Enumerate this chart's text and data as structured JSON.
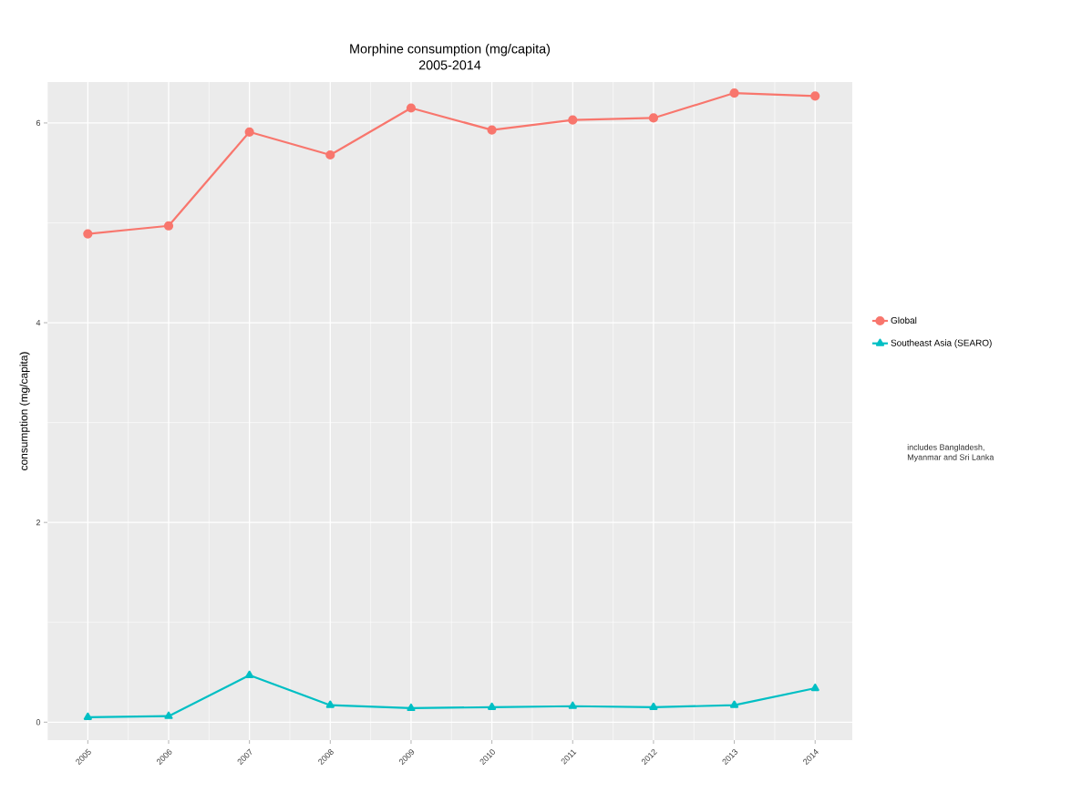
{
  "chart_data": {
    "type": "line",
    "title": "Morphine consumption (mg/capita)\n2005-2014",
    "ylabel": "consumption (mg/capita)",
    "categories": [
      "2005",
      "2006",
      "2007",
      "2008",
      "2009",
      "2010",
      "2011",
      "2012",
      "2013",
      "2014"
    ],
    "series": [
      {
        "name": "Global",
        "color": "#f8766d",
        "marker": "circle",
        "values": [
          4.89,
          4.97,
          5.91,
          5.68,
          6.15,
          5.93,
          6.03,
          6.05,
          6.3,
          6.27
        ]
      },
      {
        "name": "Southeast Asia (SEARO)",
        "color": "#00bfc4",
        "marker": "triangle",
        "values": [
          0.05,
          0.06,
          0.47,
          0.17,
          0.14,
          0.15,
          0.16,
          0.15,
          0.17,
          0.34
        ]
      }
    ],
    "annotations": [
      "includes Bangladesh,\nMyanmar and Sri Lanka"
    ],
    "ylim": [
      -0.18,
      6.41
    ],
    "yticks": [
      0,
      2,
      4,
      6
    ],
    "grid": true,
    "legend": "right",
    "line_style": "solid"
  }
}
